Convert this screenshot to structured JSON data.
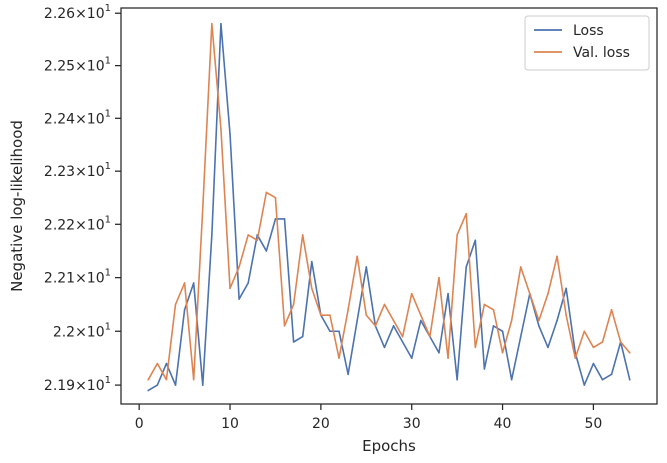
{
  "chart_data": {
    "type": "line",
    "title": "",
    "xlabel": "Epochs",
    "ylabel": "Negative log-likelihood",
    "xlim": [
      -2,
      57
    ],
    "ylim": [
      21.865,
      22.61
    ],
    "yscale": "log",
    "grid": false,
    "legend_position": "top-right",
    "x_ticks": [
      0,
      10,
      20,
      30,
      40,
      50
    ],
    "x_tick_labels": [
      "0",
      "10",
      "20",
      "30",
      "40",
      "50"
    ],
    "y_ticks": [
      21.9,
      22.0,
      22.1,
      22.2,
      22.3,
      22.4,
      22.5,
      22.6
    ],
    "y_tick_mantissas": [
      "2.19",
      "2.2",
      "2.21",
      "2.22",
      "2.23",
      "2.24",
      "2.25",
      "2.26"
    ],
    "y_tick_base": "×10",
    "y_tick_exponent": "1",
    "x": [
      1,
      2,
      3,
      4,
      5,
      6,
      7,
      8,
      9,
      10,
      11,
      12,
      13,
      14,
      15,
      16,
      17,
      18,
      19,
      20,
      21,
      22,
      23,
      24,
      25,
      26,
      27,
      28,
      29,
      30,
      31,
      32,
      33,
      34,
      35,
      36,
      37,
      38,
      39,
      40,
      41,
      42,
      43,
      44,
      45,
      46,
      47,
      48,
      49,
      50,
      51,
      52,
      53,
      54
    ],
    "series": [
      {
        "name": "Loss",
        "color": "#4c72b0",
        "values": [
          21.89,
          21.9,
          21.94,
          21.9,
          22.04,
          22.09,
          21.9,
          22.18,
          22.58,
          22.37,
          22.06,
          22.09,
          22.18,
          22.15,
          22.21,
          22.21,
          21.98,
          21.99,
          22.13,
          22.03,
          22.0,
          22.0,
          21.92,
          22.02,
          22.12,
          22.01,
          21.97,
          22.01,
          21.98,
          21.95,
          22.02,
          21.99,
          21.96,
          22.07,
          21.91,
          22.12,
          22.17,
          21.93,
          22.01,
          22.0,
          21.91,
          21.99,
          22.07,
          22.01,
          21.97,
          22.02,
          22.08,
          21.96,
          21.9,
          21.94,
          21.91,
          21.92,
          21.98,
          21.91
        ]
      },
      {
        "name": "Val. loss",
        "color": "#dd8452",
        "values": [
          21.91,
          21.94,
          21.91,
          22.05,
          22.09,
          21.91,
          22.23,
          22.58,
          22.38,
          22.08,
          22.12,
          22.18,
          22.17,
          22.26,
          22.25,
          22.01,
          22.05,
          22.18,
          22.08,
          22.03,
          22.03,
          21.95,
          22.04,
          22.14,
          22.03,
          22.01,
          22.05,
          22.02,
          21.99,
          22.07,
          22.03,
          21.99,
          22.1,
          21.95,
          22.18,
          22.22,
          21.97,
          22.05,
          22.04,
          21.96,
          22.02,
          22.12,
          22.07,
          22.02,
          22.07,
          22.14,
          22.03,
          21.95,
          22.0,
          21.97,
          21.98,
          22.04,
          21.98,
          21.96
        ]
      }
    ]
  }
}
